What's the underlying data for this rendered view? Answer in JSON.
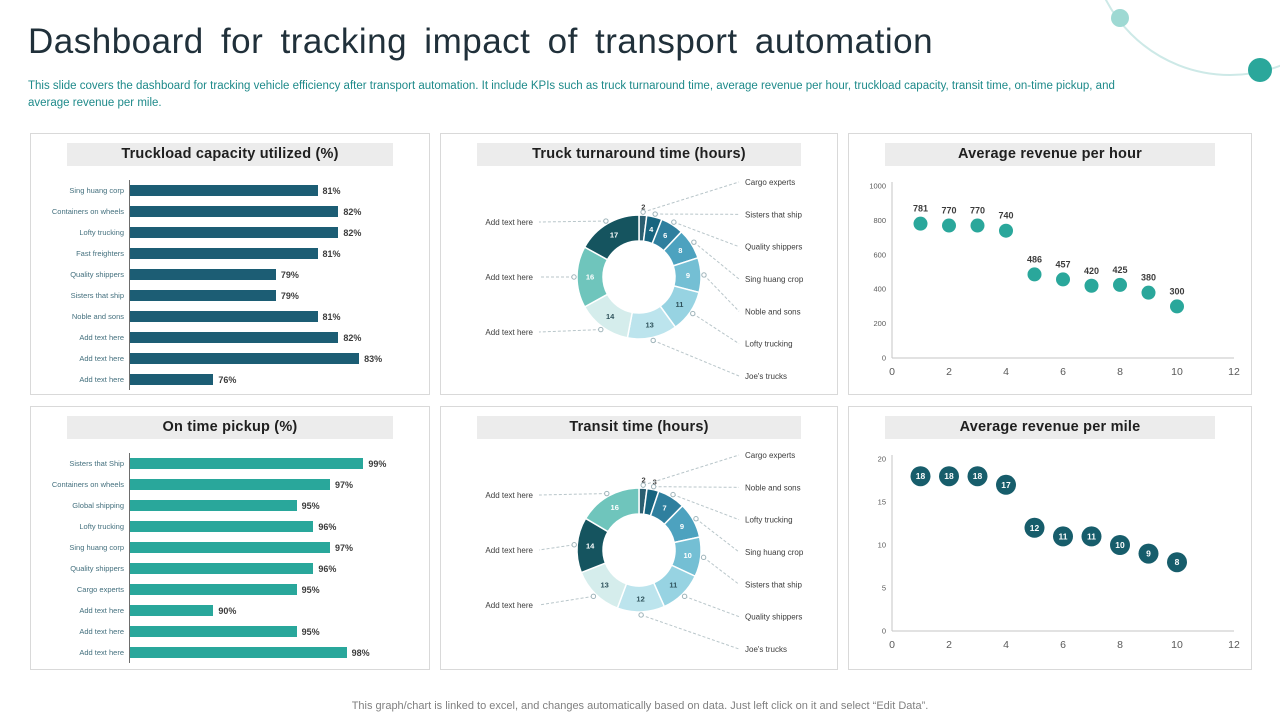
{
  "page": {
    "title": "Dashboard for tracking impact of transport automation",
    "description": "This slide covers the dashboard for tracking vehicle efficiency after transport automation. It include KPIs such as truck turnaround time, average revenue per hour, truckload capacity, transit time, on-time pickup, and average revenue per mile.",
    "footer": "This graph/chart is linked to excel,  and changes automatically based on data. Just left click on it and select “Edit Data”."
  },
  "colors": {
    "accent_teal": "#2aa79b",
    "dark_teal": "#1c5d74",
    "light_teal_circle": "#9ed9d3",
    "circle_outline": "#cde9e7",
    "panel_border": "#d9d9d9",
    "title_bar_bg": "#ececec",
    "description_text": "#1e8a8a"
  },
  "chart_data": [
    {
      "id": "truckload-capacity",
      "type": "bar",
      "orientation": "horizontal",
      "title": "Truckload capacity utilized (%)",
      "categories": [
        "Sing huang corp",
        "Containers on wheels",
        "Lofty trucking",
        "Fast freighters",
        "Quality shippers",
        "Sisters that ship",
        "Noble and sons",
        "Add text here",
        "Add text here",
        "Add text here"
      ],
      "values": [
        81,
        82,
        82,
        81,
        79,
        79,
        81,
        82,
        83,
        76
      ],
      "labels": [
        "81%",
        "82%",
        "82%",
        "81%",
        "79%",
        "79%",
        "81%",
        "82%",
        "83%",
        "76%"
      ],
      "xlim": [
        72,
        84
      ],
      "bar_color": "#1c5d74"
    },
    {
      "id": "truck-turnaround",
      "type": "pie",
      "donut": true,
      "title": "Truck turnaround time (hours)",
      "slices": [
        {
          "label": "Cargo experts",
          "value": 2,
          "side": "right",
          "color": "#2b5f71"
        },
        {
          "label": "Sisters that ship",
          "value": 4,
          "side": "right",
          "color": "#17647f"
        },
        {
          "label": "Quality shippers",
          "value": 6,
          "side": "right",
          "color": "#2f7f9e"
        },
        {
          "label": "Sing huang crop",
          "value": 8,
          "side": "right",
          "color": "#4da2bf"
        },
        {
          "label": "Noble and sons",
          "value": 9,
          "side": "right",
          "color": "#74bfd4"
        },
        {
          "label": "Lofty trucking",
          "value": 11,
          "side": "right",
          "color": "#97d3e2"
        },
        {
          "label": "Joe's trucks",
          "value": 13,
          "side": "right",
          "color": "#bce4ed"
        },
        {
          "label": "Add text here",
          "value": 14,
          "side": "left",
          "color": "#d5edec"
        },
        {
          "label": "Add text here",
          "value": 16,
          "side": "left",
          "color": "#6fc5bc"
        },
        {
          "label": "Add text here",
          "value": 17,
          "side": "left",
          "color": "#15545f"
        }
      ]
    },
    {
      "id": "avg-revenue-hour",
      "type": "scatter",
      "title": "Average revenue per hour",
      "x": [
        1,
        2,
        3,
        4,
        5,
        6,
        7,
        8,
        9,
        10
      ],
      "y": [
        781,
        770,
        770,
        740,
        486,
        457,
        420,
        425,
        380,
        300
      ],
      "xlim": [
        0,
        12
      ],
      "ylim": [
        0,
        1000
      ],
      "xticks": [
        0,
        2,
        4,
        6,
        8,
        10,
        12
      ],
      "yticks": [
        0,
        200,
        400,
        600,
        800,
        1000
      ],
      "point_color": "#2aa79b",
      "label_position": "above"
    },
    {
      "id": "on-time-pickup",
      "type": "bar",
      "orientation": "horizontal",
      "title": "On time pickup (%)",
      "categories": [
        "Sisters that Ship",
        "Containers on wheels",
        "Global shipping",
        "Lofty trucking",
        "Sing huang corp",
        "Quality shippers",
        "Cargo experts",
        "Add text here",
        "Add text here",
        "Add text here"
      ],
      "values": [
        99,
        97,
        95,
        96,
        97,
        96,
        95,
        90,
        95,
        98
      ],
      "labels": [
        "99%",
        "97%",
        "95%",
        "96%",
        "97%",
        "96%",
        "95%",
        "90%",
        "95%",
        "98%"
      ],
      "xlim": [
        85,
        100
      ],
      "bar_color": "#29a79b"
    },
    {
      "id": "transit-time",
      "type": "pie",
      "donut": true,
      "title": "Transit time (hours)",
      "slices": [
        {
          "label": "Cargo experts",
          "value": 2,
          "side": "right",
          "color": "#2b5f71"
        },
        {
          "label": "Noble and sons",
          "value": 3,
          "side": "right",
          "color": "#17647f"
        },
        {
          "label": "Lofty trucking",
          "value": 7,
          "side": "right",
          "color": "#2f7f9e"
        },
        {
          "label": "Sing huang crop",
          "value": 9,
          "side": "right",
          "color": "#4da2bf"
        },
        {
          "label": "Sisters that ship",
          "value": 10,
          "side": "right",
          "color": "#74bfd4"
        },
        {
          "label": "Quality shippers",
          "value": 11,
          "side": "right",
          "color": "#97d3e2"
        },
        {
          "label": "Joe's trucks",
          "value": 12,
          "side": "right",
          "color": "#bce4ed"
        },
        {
          "label": "Add text here",
          "value": 13,
          "side": "left",
          "color": "#d5edec"
        },
        {
          "label": "Add text here",
          "value": 14,
          "side": "left",
          "color": "#15545f"
        },
        {
          "label": "Add text here",
          "value": 16,
          "side": "left",
          "color": "#6fc5bc"
        }
      ]
    },
    {
      "id": "avg-revenue-mile",
      "type": "scatter",
      "title": "Average revenue per mile",
      "x": [
        1,
        2,
        3,
        4,
        5,
        6,
        7,
        8,
        9,
        10
      ],
      "y": [
        18,
        18,
        18,
        17,
        12,
        11,
        11,
        10,
        9,
        8
      ],
      "xlim": [
        0,
        12
      ],
      "ylim": [
        0,
        20
      ],
      "xticks": [
        0,
        2,
        4,
        6,
        8,
        10,
        12
      ],
      "yticks": [
        0,
        5,
        10,
        15,
        20
      ],
      "point_color": "#175d6b",
      "label_position": "inside"
    }
  ]
}
